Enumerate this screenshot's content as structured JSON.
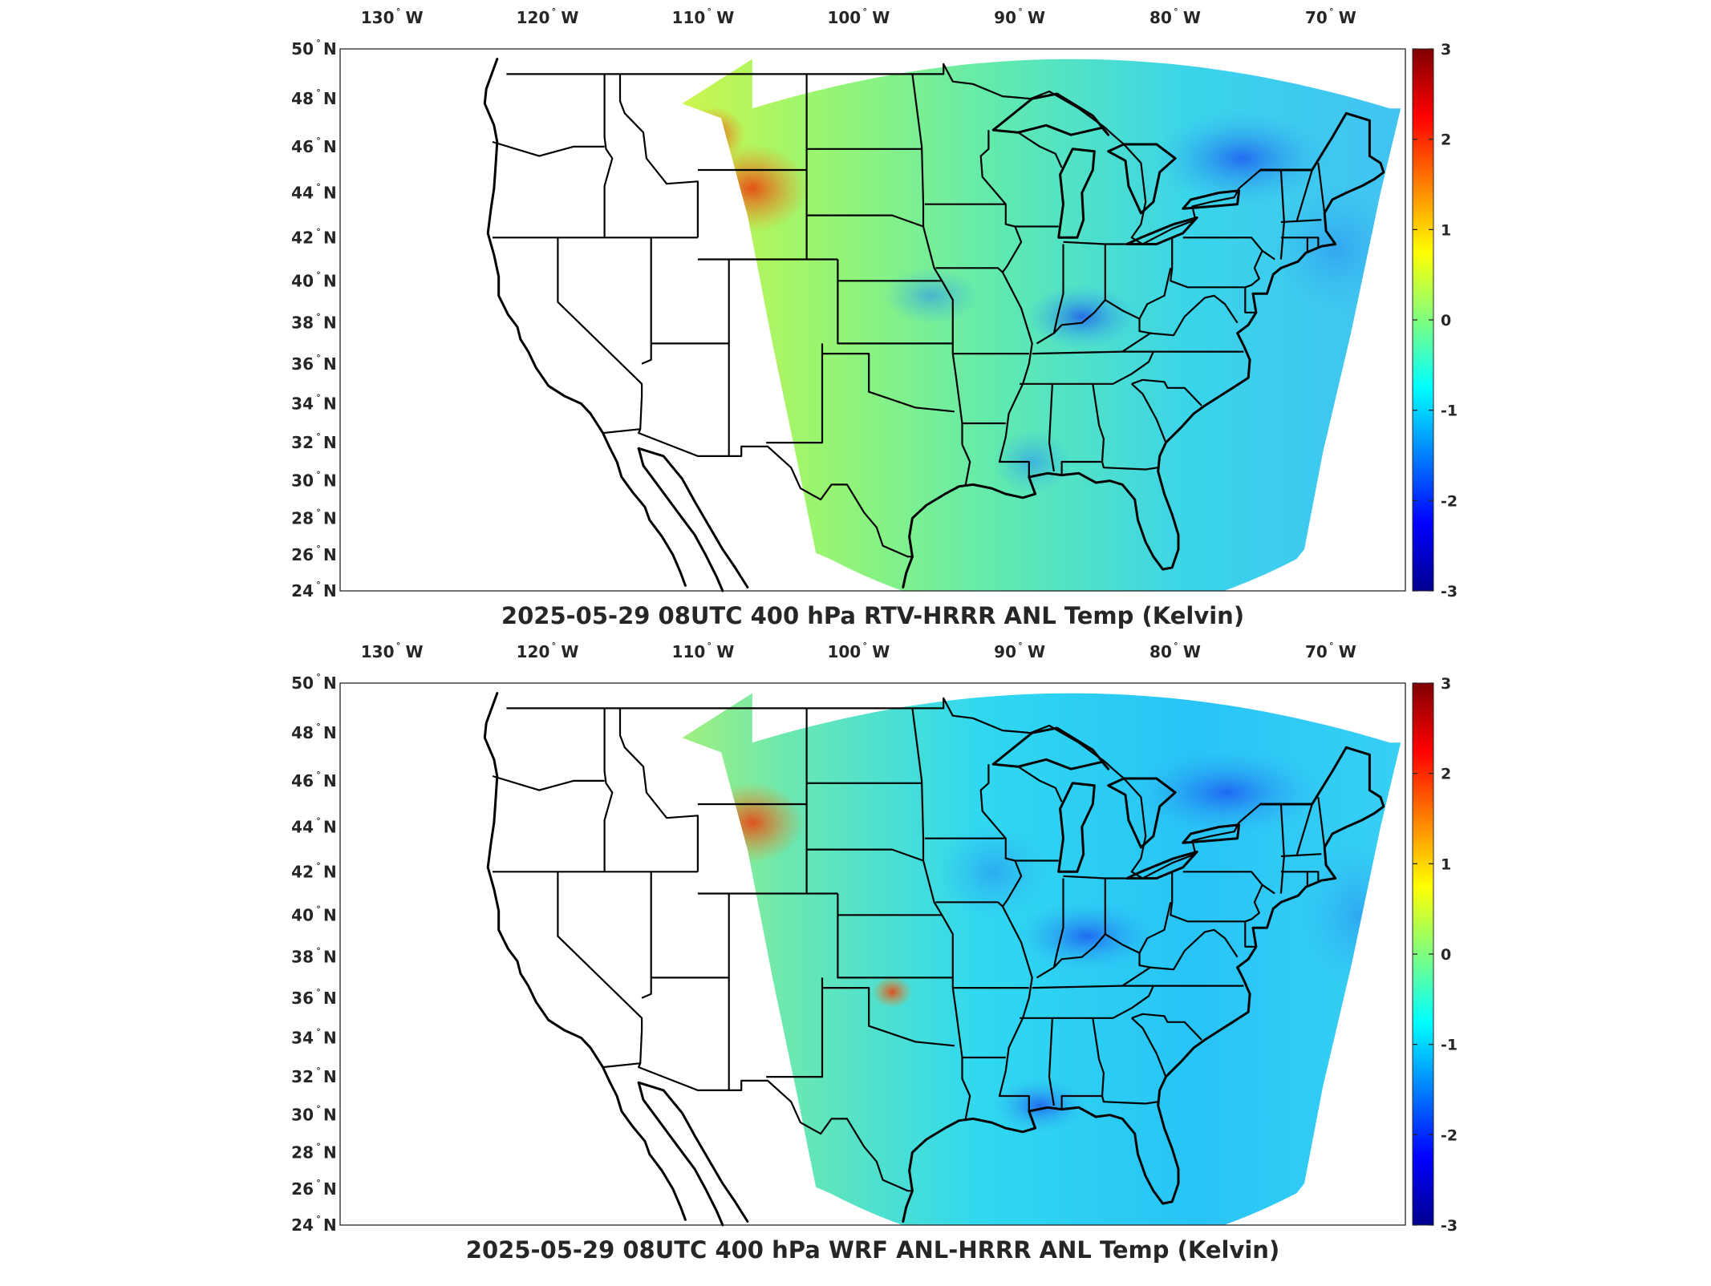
{
  "panels": [
    {
      "title": "2025-05-29 08UTC 400 hPa RTV-HRRR ANL Temp (Kelvin)",
      "field_character": "warm west / cool northeast",
      "colorbar": {
        "min": -3,
        "max": 3,
        "colormap": "jet"
      }
    },
    {
      "title": "2025-05-29 08UTC 400 hPa WRF ANL-HRRR ANL Temp (Kelvin)",
      "field_character": "warm west / cooler east",
      "colorbar": {
        "min": -3,
        "max": 3,
        "colormap": "jet"
      }
    }
  ],
  "axes": {
    "lon_ticks": [
      {
        "value": -130,
        "num": "130",
        "hem": "W"
      },
      {
        "value": -120,
        "num": "120",
        "hem": "W"
      },
      {
        "value": -110,
        "num": "110",
        "hem": "W"
      },
      {
        "value": -100,
        "num": "100",
        "hem": "W"
      },
      {
        "value": -90,
        "num": "90",
        "hem": "W"
      },
      {
        "value": -80,
        "num": "80",
        "hem": "W"
      },
      {
        "value": -70,
        "num": "70",
        "hem": "W"
      }
    ],
    "lat_ticks": [
      {
        "value": 50,
        "num": "50",
        "hem": "N"
      },
      {
        "value": 48,
        "num": "48",
        "hem": "N"
      },
      {
        "value": 46,
        "num": "46",
        "hem": "N"
      },
      {
        "value": 44,
        "num": "44",
        "hem": "N"
      },
      {
        "value": 42,
        "num": "42",
        "hem": "N"
      },
      {
        "value": 40,
        "num": "40",
        "hem": "N"
      },
      {
        "value": 38,
        "num": "38",
        "hem": "N"
      },
      {
        "value": 36,
        "num": "36",
        "hem": "N"
      },
      {
        "value": 34,
        "num": "34",
        "hem": "N"
      },
      {
        "value": 32,
        "num": "32",
        "hem": "N"
      },
      {
        "value": 30,
        "num": "30",
        "hem": "N"
      },
      {
        "value": 28,
        "num": "28",
        "hem": "N"
      },
      {
        "value": 26,
        "num": "26",
        "hem": "N"
      },
      {
        "value": 24,
        "num": "24",
        "hem": "N"
      }
    ],
    "degree_symbol": "°"
  },
  "colorbar_ticks": [
    "3",
    "2",
    "1",
    "0",
    "-1",
    "-2",
    "-3"
  ],
  "colors": {
    "jet_stops": [
      "#00008f",
      "#0000ff",
      "#00ffff",
      "#ffff00",
      "#ff0000",
      "#800000"
    ],
    "background": "#ffffff",
    "lines": "#000000"
  }
}
